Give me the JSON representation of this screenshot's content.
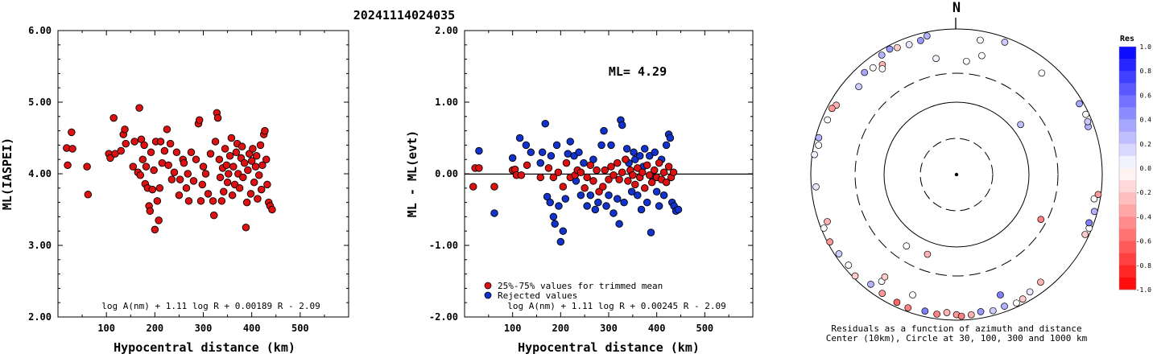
{
  "title": "20241114024035",
  "chart_data": [
    {
      "type": "scatter",
      "ylabel": "ML(IASPEI)",
      "xlabel": "Hypocentral distance (km)",
      "xlim": [
        0,
        600
      ],
      "ylim": [
        2.0,
        6.0
      ],
      "x_ticks": [
        "100",
        "200",
        "300",
        "400",
        "500"
      ],
      "y_ticks": [
        "2.00",
        "3.00",
        "4.00",
        "5.00",
        "6.00"
      ],
      "formula": "log A(nm) + 1.11 log R + 0.00189 R - 2.09",
      "marker_color": "#dd1111",
      "points": [
        [
          18,
          4.36
        ],
        [
          20,
          4.12
        ],
        [
          28,
          4.58
        ],
        [
          30,
          4.35
        ],
        [
          60,
          4.1
        ],
        [
          62,
          3.71
        ],
        [
          105,
          4.28
        ],
        [
          108,
          4.22
        ],
        [
          115,
          4.78
        ],
        [
          118,
          4.28
        ],
        [
          130,
          4.32
        ],
        [
          135,
          4.55
        ],
        [
          138,
          4.62
        ],
        [
          140,
          4.42
        ],
        [
          155,
          4.1
        ],
        [
          158,
          4.45
        ],
        [
          165,
          4.02
        ],
        [
          168,
          4.92
        ],
        [
          170,
          3.98
        ],
        [
          172,
          4.48
        ],
        [
          175,
          4.2
        ],
        [
          178,
          4.4
        ],
        [
          180,
          3.86
        ],
        [
          182,
          4.1
        ],
        [
          185,
          3.8
        ],
        [
          188,
          3.55
        ],
        [
          190,
          3.48
        ],
        [
          192,
          4.3
        ],
        [
          195,
          3.78
        ],
        [
          198,
          4.05
        ],
        [
          200,
          3.22
        ],
        [
          202,
          4.45
        ],
        [
          205,
          3.62
        ],
        [
          208,
          3.35
        ],
        [
          210,
          3.8
        ],
        [
          212,
          4.45
        ],
        [
          215,
          4.15
        ],
        [
          220,
          4.32
        ],
        [
          225,
          4.62
        ],
        [
          228,
          4.12
        ],
        [
          232,
          4.42
        ],
        [
          235,
          3.92
        ],
        [
          240,
          4.02
        ],
        [
          245,
          4.3
        ],
        [
          250,
          3.7
        ],
        [
          252,
          3.92
        ],
        [
          258,
          4.2
        ],
        [
          260,
          4.15
        ],
        [
          265,
          3.8
        ],
        [
          268,
          4.0
        ],
        [
          270,
          3.62
        ],
        [
          275,
          4.3
        ],
        [
          280,
          3.9
        ],
        [
          285,
          4.2
        ],
        [
          290,
          4.7
        ],
        [
          292,
          4.75
        ],
        [
          295,
          3.62
        ],
        [
          298,
          3.85
        ],
        [
          300,
          4.1
        ],
        [
          305,
          4.0
        ],
        [
          310,
          3.72
        ],
        [
          315,
          4.28
        ],
        [
          320,
          3.62
        ],
        [
          322,
          3.42
        ],
        [
          325,
          4.45
        ],
        [
          328,
          4.85
        ],
        [
          330,
          4.78
        ],
        [
          333,
          4.2
        ],
        [
          335,
          3.95
        ],
        [
          338,
          3.62
        ],
        [
          340,
          4.08
        ],
        [
          342,
          3.75
        ],
        [
          345,
          4.35
        ],
        [
          348,
          4.12
        ],
        [
          350,
          3.88
        ],
        [
          352,
          4.0
        ],
        [
          355,
          4.25
        ],
        [
          358,
          4.5
        ],
        [
          360,
          3.7
        ],
        [
          362,
          4.1
        ],
        [
          365,
          3.85
        ],
        [
          368,
          4.3
        ],
        [
          370,
          4.42
        ],
        [
          372,
          4.0
        ],
        [
          375,
          3.8
        ],
        [
          378,
          4.22
        ],
        [
          380,
          4.38
        ],
        [
          382,
          3.95
        ],
        [
          385,
          4.15
        ],
        [
          388,
          3.25
        ],
        [
          390,
          3.6
        ],
        [
          392,
          4.05
        ],
        [
          395,
          4.28
        ],
        [
          398,
          3.72
        ],
        [
          400,
          4.18
        ],
        [
          402,
          4.35
        ],
        [
          405,
          3.88
        ],
        [
          408,
          4.1
        ],
        [
          410,
          4.25
        ],
        [
          412,
          3.65
        ],
        [
          415,
          3.98
        ],
        [
          418,
          4.4
        ],
        [
          420,
          3.78
        ],
        [
          422,
          4.12
        ],
        [
          425,
          4.55
        ],
        [
          427,
          4.6
        ],
        [
          430,
          4.2
        ],
        [
          432,
          3.85
        ],
        [
          435,
          3.6
        ],
        [
          438,
          3.55
        ],
        [
          442,
          3.5
        ]
      ]
    },
    {
      "type": "scatter",
      "ylabel": "ML - ML(evt)",
      "xlabel": "Hypocentral distance (km)",
      "xlim": [
        0,
        600
      ],
      "ylim": [
        -2.0,
        2.0
      ],
      "x_ticks": [
        "100",
        "200",
        "300",
        "400",
        "500"
      ],
      "y_ticks": [
        "-2.00",
        "-1.00",
        "0.00",
        "1.00",
        "2.00"
      ],
      "annotation": "ML= 4.29",
      "formula": "log A(nm) + 1.11 log R + 0.00245 R - 2.09",
      "legend": [
        "25%-75% values for trimmed mean",
        "Rejected values"
      ],
      "legend_colors": [
        "#dd1111",
        "#1133cc"
      ],
      "points_trimmed": [
        [
          18,
          -0.18
        ],
        [
          22,
          0.08
        ],
        [
          30,
          0.08
        ],
        [
          62,
          -0.18
        ],
        [
          100,
          0.05
        ],
        [
          105,
          0.06
        ],
        [
          108,
          -0.02
        ],
        [
          118,
          -0.02
        ],
        [
          130,
          0.12
        ],
        [
          158,
          -0.05
        ],
        [
          175,
          0.08
        ],
        [
          185,
          -0.05
        ],
        [
          195,
          0.02
        ],
        [
          205,
          -0.18
        ],
        [
          212,
          0.15
        ],
        [
          220,
          -0.05
        ],
        [
          230,
          -0.02
        ],
        [
          235,
          0.05
        ],
        [
          242,
          0.02
        ],
        [
          250,
          -0.2
        ],
        [
          255,
          -0.05
        ],
        [
          262,
          0.12
        ],
        [
          268,
          -0.1
        ],
        [
          275,
          0.05
        ],
        [
          280,
          -0.25
        ],
        [
          288,
          -0.18
        ],
        [
          292,
          0.05
        ],
        [
          300,
          -0.08
        ],
        [
          305,
          0.1
        ],
        [
          310,
          -0.02
        ],
        [
          318,
          0.15
        ],
        [
          322,
          -0.08
        ],
        [
          328,
          0.02
        ],
        [
          335,
          0.2
        ],
        [
          340,
          -0.1
        ],
        [
          345,
          0.05
        ],
        [
          350,
          -0.02
        ],
        [
          355,
          -0.15
        ],
        [
          360,
          0.08
        ],
        [
          365,
          -0.05
        ],
        [
          370,
          0.02
        ],
        [
          375,
          -0.2
        ],
        [
          380,
          0.12
        ],
        [
          385,
          -0.02
        ],
        [
          390,
          -0.12
        ],
        [
          395,
          0.05
        ],
        [
          400,
          -0.05
        ],
        [
          405,
          0.15
        ],
        [
          410,
          -0.08
        ],
        [
          415,
          0.02
        ],
        [
          420,
          -0.12
        ],
        [
          425,
          0.1
        ],
        [
          430,
          -0.05
        ],
        [
          435,
          0.02
        ]
      ],
      "points_rejected": [
        [
          30,
          0.32
        ],
        [
          62,
          -0.55
        ],
        [
          100,
          0.22
        ],
        [
          115,
          0.5
        ],
        [
          128,
          0.4
        ],
        [
          138,
          0.3
        ],
        [
          158,
          0.15
        ],
        [
          162,
          0.3
        ],
        [
          168,
          0.7
        ],
        [
          172,
          -0.32
        ],
        [
          178,
          -0.4
        ],
        [
          180,
          0.25
        ],
        [
          185,
          -0.6
        ],
        [
          188,
          -0.7
        ],
        [
          192,
          0.4
        ],
        [
          196,
          -0.45
        ],
        [
          200,
          -0.95
        ],
        [
          205,
          -0.8
        ],
        [
          210,
          -0.35
        ],
        [
          215,
          0.28
        ],
        [
          220,
          0.45
        ],
        [
          228,
          0.25
        ],
        [
          232,
          -0.1
        ],
        [
          238,
          0.3
        ],
        [
          242,
          -0.3
        ],
        [
          248,
          0.15
        ],
        [
          255,
          -0.45
        ],
        [
          262,
          -0.3
        ],
        [
          268,
          0.2
        ],
        [
          272,
          -0.5
        ],
        [
          278,
          -0.4
        ],
        [
          285,
          0.4
        ],
        [
          290,
          0.6
        ],
        [
          295,
          -0.45
        ],
        [
          300,
          -0.3
        ],
        [
          305,
          0.4
        ],
        [
          310,
          -0.55
        ],
        [
          318,
          -0.35
        ],
        [
          322,
          -0.7
        ],
        [
          325,
          0.75
        ],
        [
          328,
          0.68
        ],
        [
          332,
          -0.4
        ],
        [
          338,
          0.35
        ],
        [
          342,
          0.15
        ],
        [
          348,
          -0.25
        ],
        [
          352,
          0.3
        ],
        [
          355,
          0.2
        ],
        [
          360,
          -0.3
        ],
        [
          365,
          0.25
        ],
        [
          368,
          -0.5
        ],
        [
          372,
          0.1
        ],
        [
          375,
          0.35
        ],
        [
          380,
          -0.4
        ],
        [
          385,
          0.25
        ],
        [
          388,
          -0.82
        ],
        [
          392,
          -0.05
        ],
        [
          396,
          0.3
        ],
        [
          400,
          -0.25
        ],
        [
          405,
          -0.45
        ],
        [
          410,
          0.2
        ],
        [
          415,
          -0.3
        ],
        [
          420,
          0.4
        ],
        [
          425,
          0.55
        ],
        [
          428,
          0.5
        ],
        [
          432,
          -0.4
        ],
        [
          436,
          -0.45
        ],
        [
          440,
          -0.52
        ],
        [
          445,
          -0.5
        ]
      ]
    },
    {
      "type": "polar_scatter",
      "north_label": "N",
      "caption_1": "Residuals as a function of azimuth and distance",
      "caption_2": "Center (10km), Circle at 30, 100, 300 and 1000 km",
      "colorbar_title": "Res",
      "colorbar_ticks": [
        "1.0",
        "0.8",
        "0.6",
        "0.4",
        "0.2",
        "0.0",
        "-0.2",
        "-0.4",
        "-0.6",
        "-0.8",
        "-1.0"
      ],
      "colorbar_range": [
        -1.0,
        1.0
      ],
      "points_az_dist_res": [
        [
          200,
          160,
          -0.3
        ],
        [
          215,
          175,
          0.0
        ],
        [
          52,
          140,
          0.25
        ],
        [
          118,
          240,
          -0.5
        ],
        [
          350,
          470,
          0.05
        ],
        [
          12,
          520,
          0.0
        ],
        [
          5,
          420,
          0.0
        ],
        [
          328,
          880,
          0.3
        ],
        [
          332,
          910,
          0.4
        ],
        [
          335,
          860,
          -0.2
        ],
        [
          340,
          820,
          0.1
        ],
        [
          322,
          760,
          0.0
        ],
        [
          318,
          800,
          0.35
        ],
        [
          326,
          700,
          -0.3
        ],
        [
          312,
          680,
          0.2
        ],
        [
          300,
          830,
          -0.3
        ],
        [
          298,
          880,
          -0.4
        ],
        [
          293,
          860,
          0.0
        ],
        [
          285,
          920,
          0.3
        ],
        [
          282,
          880,
          0.0
        ],
        [
          278,
          940,
          0.05
        ],
        [
          265,
          880,
          0.1
        ],
        [
          250,
          800,
          -0.3
        ],
        [
          248,
          930,
          0.0
        ],
        [
          242,
          940,
          -0.4
        ],
        [
          236,
          900,
          0.2
        ],
        [
          230,
          880,
          0.0
        ],
        [
          225,
          940,
          -0.2
        ],
        [
          218,
          840,
          0.3
        ],
        [
          212,
          860,
          -0.4
        ],
        [
          205,
          880,
          -0.6
        ],
        [
          200,
          900,
          -0.5
        ],
        [
          193,
          860,
          0.5
        ],
        [
          188,
          880,
          -0.5
        ],
        [
          184,
          820,
          -0.3
        ],
        [
          180,
          860,
          -0.4
        ],
        [
          178,
          900,
          -0.5
        ],
        [
          174,
          880,
          -0.3
        ],
        [
          170,
          840,
          0.4
        ],
        [
          165,
          880,
          0.2
        ],
        [
          160,
          860,
          0.3
        ],
        [
          155,
          900,
          0.0
        ],
        [
          152,
          880,
          -0.2
        ],
        [
          148,
          820,
          0.1
        ],
        [
          142,
          780,
          -0.3
        ],
        [
          160,
          620,
          0.5
        ],
        [
          200,
          620,
          0.0
        ],
        [
          215,
          660,
          0.0
        ],
        [
          115,
          900,
          -0.2
        ],
        [
          112,
          930,
          0.0
        ],
        [
          110,
          880,
          0.5
        ],
        [
          105,
          920,
          0.3
        ],
        [
          100,
          850,
          0.0
        ],
        [
          98,
          930,
          -0.4
        ],
        [
          70,
          860,
          0.3
        ],
        [
          68,
          890,
          0.2
        ],
        [
          65,
          920,
          0.0
        ],
        [
          60,
          900,
          0.35
        ],
        [
          40,
          700,
          0.0
        ],
        [
          20,
          880,
          0.2
        ],
        [
          10,
          780,
          0.0
        ],
        [
          345,
          830,
          0.4
        ],
        [
          348,
          900,
          0.3
        ],
        [
          325,
          640,
          0.0
        ],
        [
          215,
          570,
          -0.2
        ]
      ]
    }
  ]
}
